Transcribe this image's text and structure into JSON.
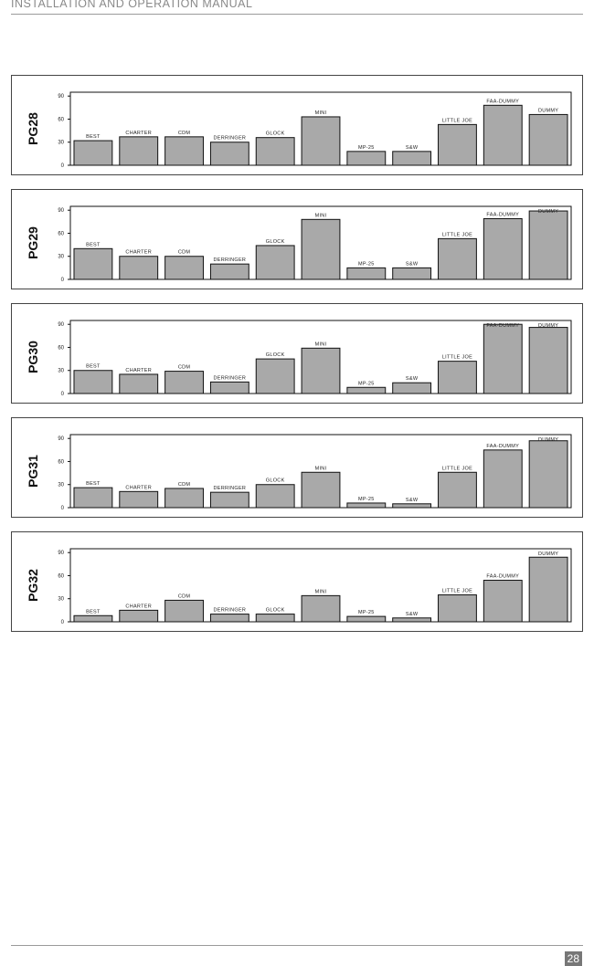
{
  "header": {
    "title": "INSTALLATION AND OPERATION MANUAL"
  },
  "footer": {
    "page_number": "28"
  },
  "style": {
    "bar_fill": "#a9a9a9",
    "bar_stroke": "#111111",
    "frame": "#444444"
  },
  "chart_data": [
    {
      "type": "bar",
      "title": "PG28",
      "categories": [
        "BEST",
        "CHARTER",
        "CDM",
        "DERRINGER",
        "GLOCK",
        "MINI",
        "MP-25",
        "S&W",
        "LITTLE JOE",
        "FAA-DUMMY",
        "DUMMY"
      ],
      "values": [
        32,
        37,
        37,
        30,
        36,
        63,
        18,
        18,
        53,
        78,
        66
      ],
      "yticks": [
        0,
        30,
        60,
        90
      ],
      "ylim": [
        0,
        95
      ]
    },
    {
      "type": "bar",
      "title": "PG29",
      "categories": [
        "BEST",
        "CHARTER",
        "CDM",
        "DERRINGER",
        "GLOCK",
        "MINI",
        "MP-25",
        "S&W",
        "LITTLE JOE",
        "FAA-DUMMY",
        "DUMMY"
      ],
      "values": [
        40,
        30,
        30,
        20,
        44,
        78,
        15,
        15,
        53,
        79,
        89
      ],
      "yticks": [
        0,
        30,
        60,
        90
      ],
      "ylim": [
        0,
        95
      ]
    },
    {
      "type": "bar",
      "title": "PG30",
      "categories": [
        "BEST",
        "CHARTER",
        "CDM",
        "DERRINGER",
        "GLOCK",
        "MINI",
        "MP-25",
        "S&W",
        "LITTLE JOE",
        "FAA-DUMMY",
        "DUMMY"
      ],
      "values": [
        30,
        25,
        29,
        15,
        45,
        59,
        8,
        14,
        42,
        90,
        86
      ],
      "yticks": [
        0,
        30,
        60,
        90
      ],
      "ylim": [
        0,
        95
      ]
    },
    {
      "type": "bar",
      "title": "PG31",
      "categories": [
        "BEST",
        "CHARTER",
        "CDM",
        "DERRINGER",
        "GLOCK",
        "MINI",
        "MP-25",
        "S&W",
        "LITTLE JOE",
        "FAA-DUMMY",
        "DUMMY"
      ],
      "values": [
        26,
        21,
        25,
        20,
        30,
        46,
        6,
        5,
        46,
        75,
        87
      ],
      "yticks": [
        0,
        30,
        60,
        90
      ],
      "ylim": [
        0,
        95
      ]
    },
    {
      "type": "bar",
      "title": "PG32",
      "categories": [
        "BEST",
        "CHARTER",
        "CDM",
        "DERRINGER",
        "GLOCK",
        "MINI",
        "MP-25",
        "S&W",
        "LITTLE JOE",
        "FAA-DUMMY",
        "DUMMY"
      ],
      "values": [
        8,
        15,
        28,
        10,
        10,
        34,
        7,
        5,
        35,
        54,
        84
      ],
      "yticks": [
        0,
        30,
        60,
        90
      ],
      "ylim": [
        0,
        95
      ]
    }
  ]
}
